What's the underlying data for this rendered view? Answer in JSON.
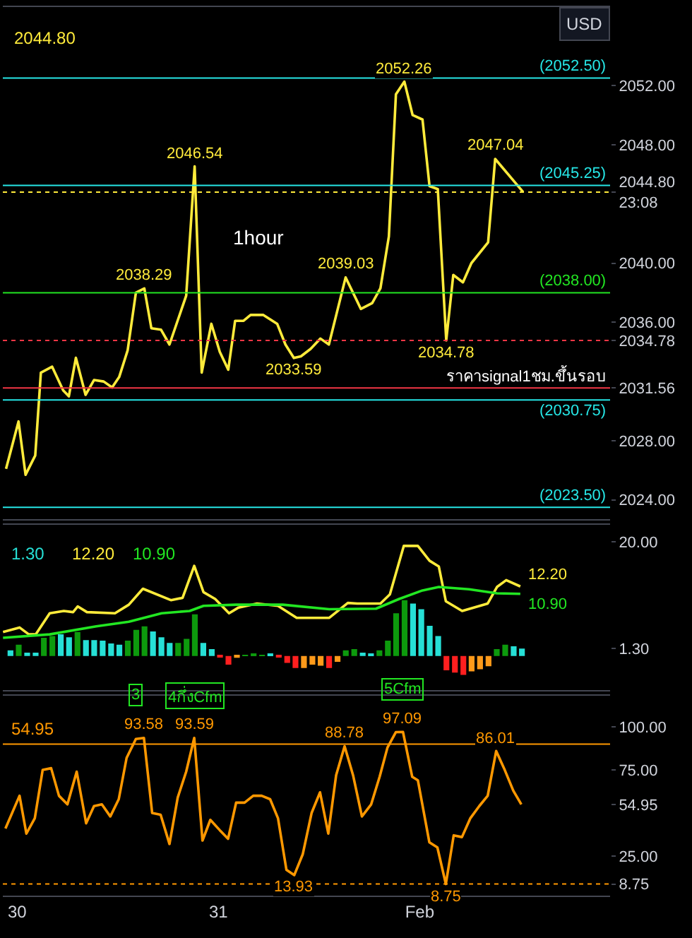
{
  "chart_data": [
    {
      "type": "line",
      "annotations": [
        "2044.80",
        "1hour",
        "USD"
      ],
      "x": [
        29.945,
        30.007,
        30.042,
        30.09,
        30.118,
        30.174,
        30.229,
        30.257,
        30.292,
        30.34,
        30.382,
        30.43,
        30.472,
        30.507,
        30.549,
        30.59,
        30.632,
        30.667,
        30.715,
        30.757,
        30.84,
        30.882,
        30.917,
        30.965,
        31.007,
        31.049,
        31.083,
        31.125,
        31.16,
        31.222,
        31.292,
        31.333,
        31.375,
        31.41,
        31.458,
        31.507,
        31.549,
        31.632,
        31.708,
        31.764,
        31.805,
        31.847,
        31.882,
        31.924,
        31.965,
        32.014,
        32.049,
        32.09,
        32.132,
        32.167,
        32.215,
        32.257,
        32.34,
        32.375,
        32.514
      ],
      "series": [
        {
          "color": "#ffeb3b",
          "values": [
            2026.1,
            2029.3,
            2025.7,
            2027.0,
            2032.6,
            2033.0,
            2031.4,
            2031.0,
            2033.6,
            2031.1,
            2032.1,
            2032.0,
            2031.6,
            2032.3,
            2034.1,
            2038.0,
            2038.29,
            2035.6,
            2035.5,
            2034.5,
            2037.8,
            2046.54,
            2032.6,
            2035.9,
            2034.0,
            2032.8,
            2036.1,
            2036.1,
            2036.5,
            2036.5,
            2035.9,
            2034.5,
            2033.59,
            2033.7,
            2034.2,
            2034.9,
            2034.5,
            2039.03,
            2036.9,
            2037.3,
            2038.3,
            2041.8,
            2051.4,
            2052.26,
            2050.0,
            2049.7,
            2045.2,
            2045.0,
            2034.78,
            2039.2,
            2038.7,
            2040.0,
            2041.4,
            2047.04,
            2044.8
          ],
          "value_labels": [
            null,
            null,
            null,
            null,
            null,
            null,
            null,
            null,
            null,
            null,
            null,
            null,
            null,
            null,
            null,
            null,
            "2038.29",
            null,
            null,
            null,
            null,
            "2046.54",
            null,
            null,
            null,
            null,
            null,
            null,
            null,
            null,
            null,
            null,
            "2033.59",
            null,
            null,
            null,
            null,
            "2039.03",
            null,
            null,
            null,
            null,
            null,
            "2052.26",
            null,
            null,
            null,
            null,
            "2034.78",
            null,
            null,
            null,
            null,
            "2047.04",
            null
          ]
        }
      ],
      "xlim": [
        29.929,
        32.946
      ],
      "ylim": [
        2022.7,
        2057.3
      ],
      "yticks": [
        {
          "value": 2024,
          "label": "2024.00"
        },
        {
          "value": 2028,
          "label": "2028.00"
        },
        {
          "value": 2031.56,
          "label": "2031.56"
        },
        {
          "value": 2034.78,
          "label": "2034.78"
        },
        {
          "value": 2036,
          "label": "2036.00"
        },
        {
          "value": 2040,
          "label": "2040.00"
        },
        {
          "value": 2044.8,
          "label": "2044.80\n23:08"
        },
        {
          "value": 2048,
          "label": "2048.00"
        },
        {
          "value": 2052,
          "label": "2052.00"
        }
      ],
      "ref_lines": [
        {
          "axis": "y",
          "value": 2052.5,
          "label": "(2052.50)",
          "color": "#26e6e6",
          "line_style": "solid"
        },
        {
          "axis": "y",
          "value": 2045.25,
          "label": "(2045.25)",
          "color": "#26e6e6",
          "line_style": "solid"
        },
        {
          "axis": "y",
          "value": 2044.8,
          "color": "#ffeb3b",
          "line_style": "dotted"
        },
        {
          "axis": "y",
          "value": 2038.0,
          "label": "(2038.00)",
          "color": "#22e622",
          "line_style": "solid"
        },
        {
          "axis": "y",
          "value": 2034.78,
          "color": "#f23645",
          "line_style": "dotted"
        },
        {
          "axis": "y",
          "value": 2031.56,
          "label": "ราคาsignal1ชม.ขึ้นรอบ",
          "color": "#f23645",
          "line_style": "solid"
        },
        {
          "axis": "y",
          "value": 2030.75,
          "label": "(2030.75)",
          "color": "#26e6e6",
          "line_style": "solid"
        },
        {
          "axis": "y",
          "value": 2023.5,
          "label": "(2023.50)",
          "color": "#26e6e6",
          "line_style": "solid"
        }
      ],
      "grid": false,
      "marker": "none",
      "line_style": "solid",
      "tick_labels": "y"
    },
    {
      "type": "line",
      "annotations": [
        "1.30",
        "12.20",
        "10.90",
        {
          "text": "12.20",
          "x": 32.5,
          "y": 12.2
        },
        {
          "text": "10.90",
          "x": 32.5,
          "y": 10.9
        }
      ],
      "series": [
        {
          "type": "bar",
          "color": "#26e0d6",
          "x": [
            29.967,
            30.008,
            30.05,
            30.092,
            30.133,
            30.175,
            30.217,
            30.258,
            30.3,
            30.342,
            30.383,
            30.425,
            30.467,
            30.508,
            30.55,
            30.592,
            30.633,
            30.675,
            30.717,
            30.758,
            30.8,
            30.842,
            30.883,
            30.925,
            30.967,
            31.008,
            31.05,
            31.092,
            31.133,
            31.175,
            31.217,
            31.258,
            31.3,
            31.342,
            31.383,
            31.425,
            31.467,
            31.508,
            31.55,
            31.592,
            31.633,
            31.675,
            31.717,
            31.758,
            31.8,
            31.842,
            31.883,
            31.925,
            31.967,
            32.008,
            32.05,
            32.092,
            32.133,
            32.175,
            32.217,
            32.258,
            32.3,
            32.342,
            32.383,
            32.425,
            32.467,
            32.508
          ],
          "values": [
            1,
            2,
            0.6,
            0.6,
            3.2,
            3.5,
            3.8,
            3.3,
            4.2,
            2.8,
            2.8,
            2.7,
            2.2,
            2.0,
            2.7,
            4.6,
            5.2,
            4.3,
            3.3,
            2.3,
            2.3,
            3.0,
            7.3,
            2.3,
            1.2,
            -0.2,
            -1.5,
            -0.3,
            0.2,
            0.3,
            0.2,
            0.3,
            -0.1,
            -1.2,
            -2.1,
            -2.1,
            -1.5,
            -1.7,
            -2.1,
            -1.0,
            1.0,
            1.2,
            0.6,
            0.3,
            1.0,
            2.7,
            7.5,
            9.8,
            9.2,
            8.2,
            5.3,
            3.5,
            -2.5,
            -2.9,
            -3.3,
            -2.7,
            -2.3,
            -1.8,
            1.2,
            2.0,
            1.7,
            1.3
          ],
          "colors": [
            "#26e0d6",
            "#0d9a0d",
            "#26e0d6",
            "#26e0d6",
            "#0d9a0d",
            "#0d9a0d",
            "#26e0d6",
            "#26e0d6",
            "#0d9a0d",
            "#26e0d6",
            "#26e0d6",
            "#26e0d6",
            "#26e0d6",
            "#26e0d6",
            "#0d9a0d",
            "#0d9a0d",
            "#0d9a0d",
            "#26e0d6",
            "#26e0d6",
            "#26e0d6",
            "#0d9a0d",
            "#0d9a0d",
            "#0d9a0d",
            "#26e0d6",
            "#26e0d6",
            "#ff1f1f",
            "#ff1f1f",
            "#ff9a1a",
            "#0d9a0d",
            "#0d9a0d",
            "#0d9a0d",
            "#26e0d6",
            "#ff1f1f",
            "#ff1f1f",
            "#ff1f1f",
            "#ff9a1a",
            "#ff9a1a",
            "#ff9a1a",
            "#ff1f1f",
            "#ff9a1a",
            "#0d9a0d",
            "#0d9a0d",
            "#26e0d6",
            "#26e0d6",
            "#0d9a0d",
            "#0d9a0d",
            "#0d9a0d",
            "#0d9a0d",
            "#26e0d6",
            "#26e0d6",
            "#26e0d6",
            "#26e0d6",
            "#ff1f1f",
            "#ff1f1f",
            "#ff1f1f",
            "#ff9a1a",
            "#ff9a1a",
            "#ff9a1a",
            "#0d9a0d",
            "#0d9a0d",
            "#26e0d6",
            "#26e0d6"
          ]
        },
        {
          "type": "line",
          "color": "#ffeb3b",
          "x": [
            29.93,
            30.012,
            30.058,
            30.093,
            30.162,
            30.232,
            30.278,
            30.301,
            30.347,
            30.486,
            30.555,
            30.625,
            30.764,
            30.822,
            30.88,
            30.926,
            30.984,
            31.053,
            31.1,
            31.192,
            31.296,
            31.389,
            31.551,
            31.643,
            31.69,
            31.805,
            31.852,
            31.921,
            31.991,
            32.049,
            32.095,
            32.13,
            32.211,
            32.338,
            32.384,
            32.43,
            32.5
          ],
          "values": [
            4.2,
            5.0,
            3.8,
            3.8,
            7.5,
            7.9,
            7.7,
            8.7,
            7.7,
            7.5,
            9.0,
            11.8,
            9.8,
            10.2,
            15.8,
            11.2,
            10.0,
            7.5,
            8.5,
            9.2,
            8.8,
            6.7,
            6.7,
            9.3,
            9.2,
            9.2,
            10.8,
            19.3,
            19.3,
            16.7,
            15.7,
            9.6,
            7.9,
            9.2,
            12.1,
            13.3,
            12.2
          ]
        },
        {
          "type": "line",
          "color": "#22e622",
          "x": [
            29.93,
            30.162,
            30.393,
            30.555,
            30.718,
            30.857,
            30.926,
            31.088,
            31.32,
            31.551,
            31.783,
            31.898,
            32.014,
            32.095,
            32.245,
            32.384,
            32.5
          ],
          "values": [
            3.2,
            3.8,
            5.2,
            6.0,
            7.5,
            7.9,
            8.8,
            9.0,
            9.0,
            8.2,
            8.3,
            10.0,
            11.5,
            12.1,
            11.7,
            11.0,
            10.9
          ]
        }
      ],
      "xlim": [
        29.929,
        32.946
      ],
      "ylim": [
        -6,
        23
      ],
      "yticks": [
        {
          "value": 1.3,
          "label": "1.30"
        },
        {
          "value": 20,
          "label": "20.00"
        }
      ],
      "grid": false,
      "marker": "none",
      "tick_labels": "y"
    },
    {
      "type": "line",
      "annotations": [
        "54.95",
        {
          "text": "3",
          "x": 30.59,
          "y": 93.58
        },
        {
          "text": "4กึ่งCfm",
          "x": 30.88,
          "y": 93.59
        },
        {
          "text": "5Cfm",
          "x": 31.917,
          "y": 97.09
        }
      ],
      "x": [
        29.942,
        30.012,
        30.046,
        30.088,
        30.127,
        30.169,
        30.208,
        30.25,
        30.296,
        30.343,
        30.382,
        30.421,
        30.463,
        30.505,
        30.544,
        30.59,
        30.63,
        30.671,
        30.713,
        30.757,
        30.798,
        30.84,
        30.88,
        30.921,
        30.96,
        31.007,
        31.048,
        31.088,
        31.13,
        31.173,
        31.215,
        31.257,
        31.296,
        31.338,
        31.377,
        31.419,
        31.463,
        31.505,
        31.546,
        31.585,
        31.627,
        31.669,
        31.713,
        31.759,
        31.801,
        31.84,
        31.882,
        31.917,
        31.963,
        31.991,
        32.048,
        32.088,
        32.13,
        32.169,
        32.21,
        32.252,
        32.296,
        32.338,
        32.38,
        32.419,
        32.465,
        32.505
      ],
      "series": [
        {
          "color": "#ff9800",
          "values": [
            41,
            60,
            38,
            47,
            75,
            76,
            60,
            55,
            74,
            44,
            54,
            55,
            48,
            58,
            82,
            93,
            93.58,
            50,
            49,
            32,
            59,
            74,
            93.59,
            34,
            46,
            40,
            35,
            56,
            56,
            60,
            60,
            58,
            47,
            17,
            13.93,
            26,
            50,
            62,
            38,
            72,
            88.78,
            72,
            48,
            55,
            71,
            88,
            97,
            97.09,
            71,
            69,
            33,
            30,
            8.75,
            37,
            36,
            47,
            54,
            60,
            86.01,
            76,
            63,
            54.95
          ],
          "value_labels": [
            null,
            null,
            null,
            null,
            null,
            null,
            null,
            null,
            null,
            null,
            null,
            null,
            null,
            null,
            null,
            null,
            "93.58",
            null,
            null,
            null,
            null,
            null,
            "93.59",
            null,
            null,
            null,
            null,
            null,
            null,
            null,
            null,
            null,
            null,
            null,
            "13.93",
            null,
            null,
            null,
            null,
            null,
            "88.78",
            null,
            null,
            null,
            null,
            null,
            null,
            "97.09",
            null,
            null,
            null,
            null,
            "8.75",
            null,
            null,
            null,
            null,
            null,
            "86.01",
            null,
            null,
            null
          ]
        }
      ],
      "xlim": [
        29.929,
        32.946
      ],
      "xticks": [
        30,
        31,
        {
          "value": 32,
          "label": "Feb"
        }
      ],
      "ylim": [
        2,
        118
      ],
      "yticks": [
        {
          "value": 8.75,
          "label": "8.75"
        },
        {
          "value": 25,
          "label": "25.00"
        },
        {
          "value": 54.95,
          "label": "54.95"
        },
        {
          "value": 75,
          "label": "75.00"
        },
        {
          "value": 100,
          "label": "100.00"
        }
      ],
      "ref_lines": [
        {
          "axis": "y",
          "value": 90,
          "color": "#ff9800",
          "line_style": "solid"
        },
        {
          "axis": "y",
          "value": 8.75,
          "color": "#ff9800",
          "line_style": "dotted"
        }
      ],
      "grid": false,
      "marker": "none",
      "line_style": "solid"
    }
  ]
}
